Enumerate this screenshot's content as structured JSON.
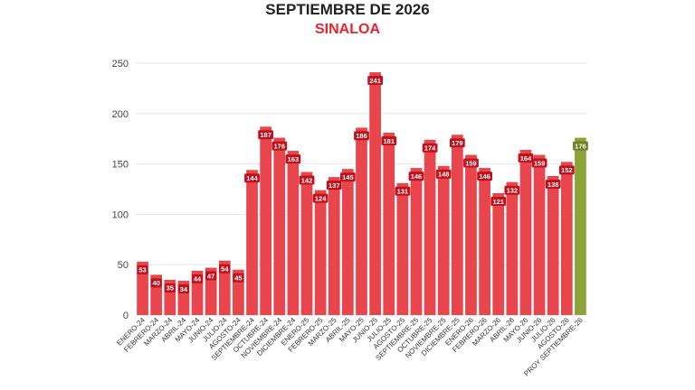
{
  "header": {
    "title": "SEPTIEMBRE DE 2026",
    "subtitle": "SINALOA"
  },
  "colors": {
    "bar": "#e8454c",
    "projection": "#8da33a",
    "label_bg": "#c0121c",
    "label_bg_projection": "#6d8224",
    "subtitle": "#e8232f",
    "grid": "#e6e6e6"
  },
  "chart_data": {
    "type": "bar",
    "title": "SEPTIEMBRE DE 2026",
    "subtitle": "SINALOA",
    "xlabel": "",
    "ylabel": "",
    "ylim": [
      0,
      250
    ],
    "yticks": [
      0,
      50,
      100,
      150,
      200,
      250
    ],
    "grid": true,
    "categories": [
      "ENERO-24",
      "FEBRERO-24",
      "MARZO-24",
      "ABRIL-24",
      "MAYO-24",
      "JUNIO-24",
      "JULIO-24",
      "AGOSTO-24",
      "SEPTIEMBRE-24",
      "OCTUBRE-24",
      "NOVIEMBRE-24",
      "DICIEMBRE-24",
      "ENERO-25",
      "FEBRERO-25",
      "MARZO-25",
      "ABRIL-25",
      "MAYO-25",
      "JUNIO-25",
      "JULIO-25",
      "AGOSTO-25",
      "SEPTIEMBRE-25",
      "OCTUBRE-25",
      "NOVIEMBRE-25",
      "DICIEMBRE-25",
      "ENERO-26",
      "FEBRERO-26",
      "MARZO-26",
      "ABRIL-26",
      "MAYO-26",
      "JUNIO-26",
      "JULIO-26",
      "AGOSTO-26",
      "PROY SEPTIEMBRE-26"
    ],
    "values": [
      53,
      40,
      35,
      34,
      44,
      47,
      54,
      45,
      144,
      187,
      176,
      163,
      142,
      124,
      137,
      145,
      186,
      241,
      181,
      131,
      146,
      174,
      148,
      179,
      159,
      146,
      121,
      132,
      164,
      159,
      138,
      152,
      176
    ],
    "projection_index": 32
  }
}
